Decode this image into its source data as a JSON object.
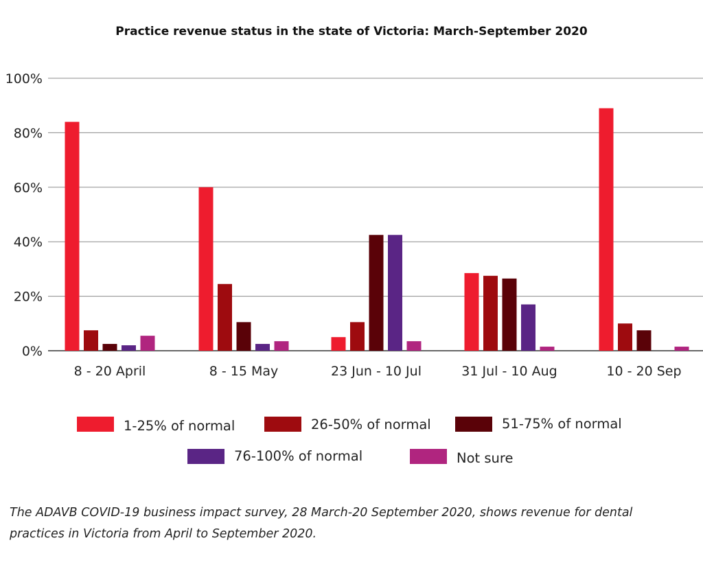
{
  "title": "Practice revenue status in the state of Victoria: March-September 2020",
  "caption": "The ADAVB COVID-19 business impact survey, 28 March-20 September 2020, shows revenue for dental practices in Victoria from April to September 2020.",
  "chart_data": {
    "type": "bar",
    "title": "Practice revenue status in the state of Victoria: March-September 2020",
    "categories": [
      "8 - 20 April",
      "8 - 15 May",
      "23 Jun - 10 Jul",
      "31 Jul - 10 Aug",
      "10 - 20 Sep"
    ],
    "ylim": [
      0,
      100
    ],
    "yticks": [
      "0%",
      "20%",
      "40%",
      "60%",
      "80%",
      "100%"
    ],
    "grid": true,
    "legend_position": "bottom",
    "series": [
      {
        "name": "1-25% of normal",
        "color": "#ee1c2e",
        "values": [
          84,
          60,
          5,
          28.5,
          89
        ]
      },
      {
        "name": "26-50% of normal",
        "color": "#9e0b0f",
        "values": [
          7.5,
          24.5,
          10.5,
          27.5,
          10
        ]
      },
      {
        "name": "51-75% of normal",
        "color": "#5a0208",
        "values": [
          2.5,
          10.5,
          42.5,
          26.5,
          7.5
        ]
      },
      {
        "name": "76-100% of normal",
        "color": "#5a2585",
        "values": [
          2,
          2.5,
          42.5,
          17,
          null
        ]
      },
      {
        "name": "Not sure",
        "color": "#b0257f",
        "values": [
          5.5,
          3.5,
          3.5,
          1.5,
          1.5
        ]
      }
    ]
  }
}
